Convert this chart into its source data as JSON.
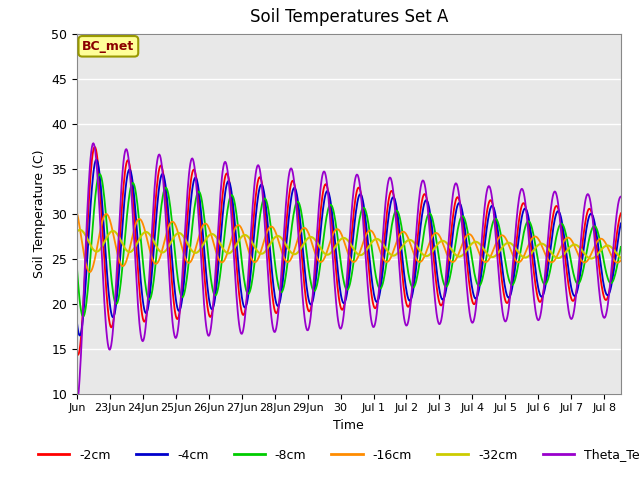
{
  "title": "Soil Temperatures Set A",
  "xlabel": "Time",
  "ylabel": "Soil Temperature (C)",
  "ylim": [
    10,
    50
  ],
  "annotation": "BC_met",
  "x_tick_labels": [
    "Jun",
    "23Jun",
    "24Jun",
    "25Jun",
    "26Jun",
    "27Jun",
    "28Jun",
    "29Jun",
    "30",
    "Jul 1",
    "Jul 2",
    "Jul 3",
    "Jul 4",
    "Jul 5",
    "Jul 6",
    "Jul 7",
    "Jul 8"
  ],
  "x_tick_positions": [
    0,
    1,
    2,
    3,
    4,
    5,
    6,
    7,
    8,
    9,
    10,
    11,
    12,
    13,
    14,
    15,
    16
  ],
  "colors": {
    "-2cm": "#FF0000",
    "-4cm": "#0000CC",
    "-8cm": "#00CC00",
    "-16cm": "#FF8C00",
    "-32cm": "#CCCC00",
    "Theta_Temp": "#9900CC"
  },
  "background_color": "#E8E8E8",
  "legend_entries": [
    "-2cm",
    "-4cm",
    "-8cm",
    "-16cm",
    "-32cm",
    "Theta_Temp"
  ]
}
